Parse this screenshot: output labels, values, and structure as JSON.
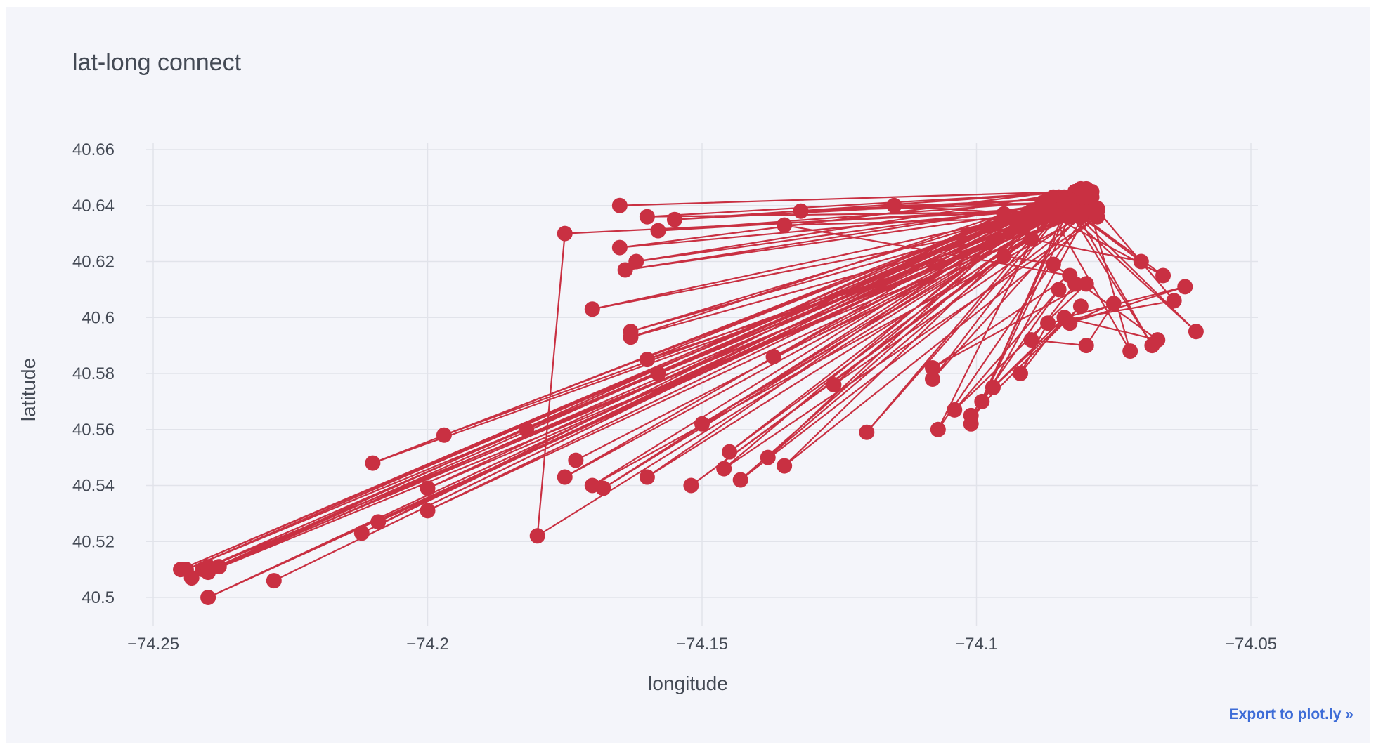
{
  "export_label": "Export to plot.ly »",
  "chart_data": {
    "type": "scatter",
    "mode": "lines+markers",
    "title": "lat-long connect",
    "xlabel": "longitude",
    "ylabel": "latitude",
    "xlim": [
      -74.25,
      -74.05
    ],
    "ylim": [
      40.5,
      40.66
    ],
    "xticks": [
      -74.25,
      -74.2,
      -74.15,
      -74.1,
      -74.05
    ],
    "xtick_labels": [
      "−74.25",
      "−74.2",
      "−74.15",
      "−74.1",
      "−74.05"
    ],
    "yticks": [
      40.5,
      40.52,
      40.54,
      40.56,
      40.58,
      40.6,
      40.62,
      40.64,
      40.66
    ],
    "ytick_labels": [
      "40.5",
      "40.52",
      "40.54",
      "40.56",
      "40.58",
      "40.6",
      "40.62",
      "40.64",
      "40.66"
    ],
    "grid": true,
    "line_color": "#c93042",
    "series": [
      {
        "x": [
          -74.165,
          -74.082,
          -74.245,
          -74.087,
          -74.16,
          -74.083,
          -74.241,
          -74.085,
          -74.21,
          -74.088,
          -74.175,
          -74.08,
          -74.18,
          -74.175,
          -74.09,
          -74.24,
          -74.082,
          -74.228,
          -74.084,
          -74.197,
          -74.081,
          -74.243,
          -74.095,
          -74.212,
          -74.086,
          -74.17,
          -74.078,
          -74.24,
          -74.079,
          -74.163,
          -74.08,
          -74.238,
          -74.085,
          -74.2,
          -74.083,
          -74.2,
          -74.09,
          -74.244,
          -74.086,
          -74.182,
          -74.088,
          -74.168,
          -74.081,
          -74.209,
          -74.083,
          -74.173,
          -74.08,
          -74.152,
          -74.082,
          -74.24,
          -74.08,
          -74.145,
          -74.085,
          -74.16,
          -74.08,
          -74.143,
          -74.086,
          -74.135,
          -74.078,
          -74.146,
          -74.09,
          -74.138,
          -74.083,
          -74.158,
          -74.082,
          -74.162,
          -74.081,
          -74.15,
          -74.085,
          -74.12,
          -74.082,
          -74.101,
          -74.079,
          -74.107,
          -74.086,
          -74.126,
          -74.08,
          -74.163,
          -74.081,
          -74.165,
          -74.08,
          -74.158,
          -74.082,
          -74.164,
          -74.085,
          -74.17,
          -74.078,
          -74.16,
          -74.081,
          -74.155,
          -74.079,
          -74.132,
          -74.082,
          -74.115,
          -74.083,
          -74.099,
          -74.083,
          -74.108,
          -74.08,
          -74.137,
          -74.085,
          -74.06,
          -74.084,
          -74.068,
          -74.082,
          -74.066,
          -74.086,
          -74.072,
          -74.08,
          -74.064,
          -74.087,
          -74.092,
          -74.084,
          -74.097,
          -74.081,
          -74.101,
          -74.085,
          -74.104,
          -74.08,
          -74.108,
          -74.083,
          -74.135,
          -74.081,
          -74.07,
          -74.09,
          -74.095,
          -74.086,
          -74.067,
          -74.084,
          -74.062,
          -74.083,
          -74.075,
          -74.08,
          -74.09,
          -74.082
        ],
        "y": [
          40.64,
          40.645,
          40.51,
          40.642,
          40.543,
          40.638,
          40.51,
          40.636,
          40.548,
          40.641,
          40.543,
          40.644,
          40.522,
          40.63,
          40.638,
          40.511,
          40.645,
          40.506,
          40.643,
          40.558,
          40.64,
          40.507,
          40.637,
          40.523,
          40.642,
          40.54,
          40.639,
          40.509,
          40.645,
          40.595,
          40.641,
          40.511,
          40.643,
          40.539,
          40.638,
          40.531,
          40.635,
          40.51,
          40.642,
          40.56,
          40.639,
          40.539,
          40.644,
          40.527,
          40.64,
          40.549,
          40.643,
          40.54,
          40.641,
          40.5,
          40.646,
          40.552,
          40.643,
          40.585,
          40.637,
          40.542,
          40.64,
          40.547,
          40.636,
          40.546,
          40.638,
          40.55,
          40.641,
          40.58,
          40.645,
          40.62,
          40.642,
          40.562,
          40.64,
          40.559,
          40.644,
          40.562,
          40.64,
          40.56,
          40.643,
          40.576,
          40.638,
          40.593,
          40.646,
          40.625,
          40.64,
          40.631,
          40.642,
          40.617,
          40.639,
          40.603,
          40.638,
          40.636,
          40.645,
          40.635,
          40.643,
          40.638,
          40.641,
          40.64,
          40.636,
          40.57,
          40.642,
          40.578,
          40.639,
          40.586,
          40.64,
          40.595,
          40.641,
          40.59,
          40.638,
          40.615,
          40.636,
          40.588,
          40.643,
          40.606,
          40.598,
          40.58,
          40.6,
          40.575,
          40.604,
          40.565,
          40.61,
          40.567,
          40.612,
          40.582,
          40.615,
          40.633,
          40.636,
          40.62,
          40.628,
          40.622,
          40.619,
          40.592,
          40.6,
          40.611,
          40.598,
          40.605,
          40.59,
          40.592,
          40.612
        ]
      }
    ]
  }
}
